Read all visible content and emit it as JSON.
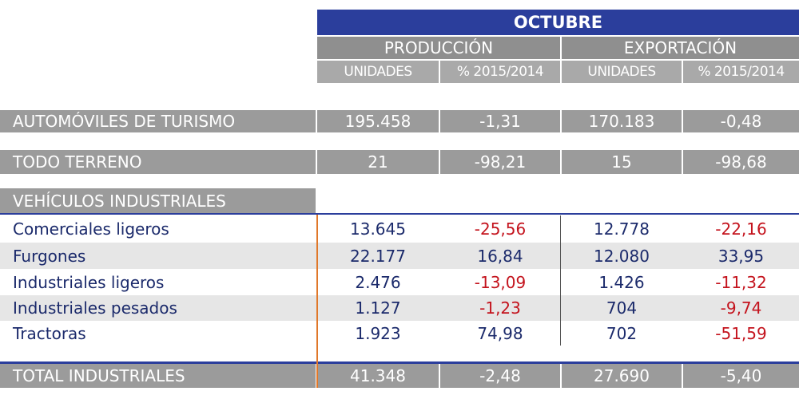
{
  "header": {
    "title": "OCTUBRE",
    "groups": [
      "PRODUCCIÓN",
      "EXPORTACIÓN"
    ],
    "subheaders": [
      "UNIDADES",
      "% 2015/2014",
      "UNIDADES",
      "% 2015/2014"
    ]
  },
  "main_rows": [
    {
      "label": "AUTOMÓVILES DE TURISMO",
      "values": [
        "195.458",
        "-1,31",
        "170.183",
        "-0,48"
      ]
    },
    {
      "label": "TODO TERRENO",
      "values": [
        "21",
        "-98,21",
        "15",
        "-98,68"
      ]
    }
  ],
  "section": {
    "title": "VEHÍCULOS INDUSTRIALES",
    "rows": [
      {
        "label": "Comerciales ligeros",
        "values": [
          "13.645",
          "-25,56",
          "12.778",
          "-22,16"
        ]
      },
      {
        "label": "Furgones",
        "values": [
          "22.177",
          "16,84",
          "12.080",
          "33,95"
        ]
      },
      {
        "label": "Industriales ligeros",
        "values": [
          "2.476",
          "-13,09",
          "1.426",
          "-11,32"
        ]
      },
      {
        "label": "Industriales pesados",
        "values": [
          "1.127",
          "-1,23",
          "704",
          "-9,74"
        ]
      },
      {
        "label": "Tractoras",
        "values": [
          "1.923",
          "74,98",
          "702",
          "-51,59"
        ]
      }
    ]
  },
  "total": {
    "label": "TOTAL INDUSTRIALES",
    "values": [
      "41.348",
      "-2,48",
      "27.690",
      "-5,40"
    ]
  }
}
